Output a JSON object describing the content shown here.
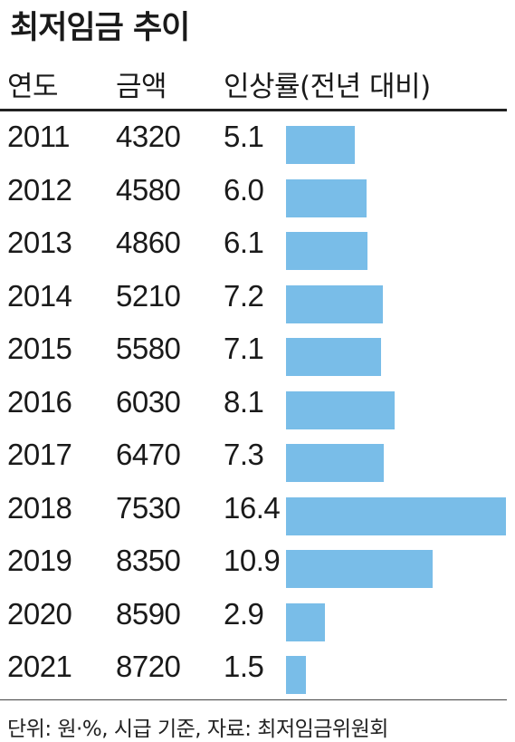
{
  "title": "최저임금 추이",
  "headers": {
    "year": "연도",
    "amount": "금액",
    "rate": "인상률(전년 대비)"
  },
  "chart_data": {
    "type": "table",
    "title": "최저임금 추이",
    "columns": [
      "연도",
      "금액",
      "인상률(전년 대비)"
    ],
    "rows": [
      {
        "year": "2011",
        "amount": "4320",
        "rate": "5.1",
        "value": 5.1
      },
      {
        "year": "2012",
        "amount": "4580",
        "rate": "6.0",
        "value": 6.0
      },
      {
        "year": "2013",
        "amount": "4860",
        "rate": "6.1",
        "value": 6.1
      },
      {
        "year": "2014",
        "amount": "5210",
        "rate": "7.2",
        "value": 7.2
      },
      {
        "year": "2015",
        "amount": "5580",
        "rate": "7.1",
        "value": 7.1
      },
      {
        "year": "2016",
        "amount": "6030",
        "rate": "8.1",
        "value": 8.1
      },
      {
        "year": "2017",
        "amount": "6470",
        "rate": "7.3",
        "value": 7.3
      },
      {
        "year": "2018",
        "amount": "7530",
        "rate": "16.4",
        "value": 16.4
      },
      {
        "year": "2019",
        "amount": "8350",
        "rate": "10.9",
        "value": 10.9
      },
      {
        "year": "2020",
        "amount": "8590",
        "rate": "2.9",
        "value": 2.9
      },
      {
        "year": "2021",
        "amount": "8720",
        "rate": "1.5",
        "value": 1.5
      }
    ],
    "bar_color": "#79bde8",
    "bar_max": 16.4
  },
  "footer": "단위: 원·%, 시급 기준, 자료: 최저임금위원회"
}
